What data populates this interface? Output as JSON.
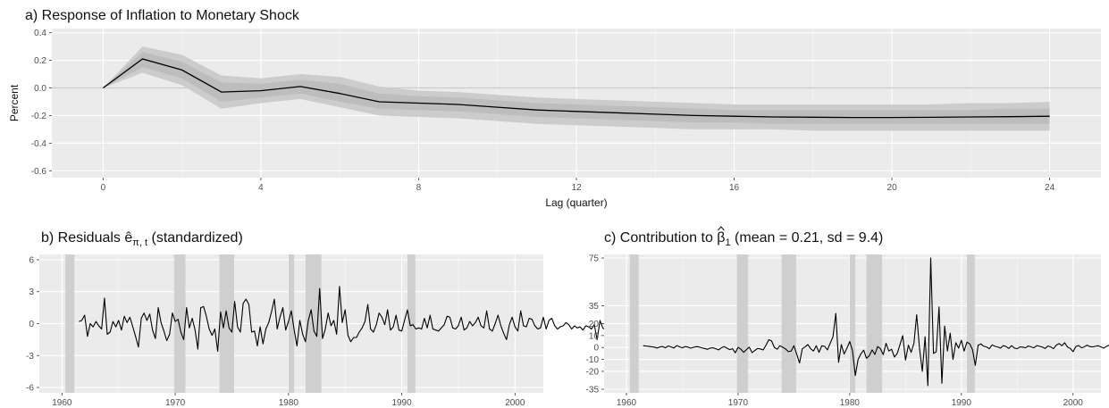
{
  "chart_data": [
    {
      "type": "line",
      "panel": "a",
      "title": "a) Response of Inflation to Monetary Shock",
      "xlabel": "Lag (quarter)",
      "ylabel": "Percent",
      "xlim": [
        -1.3,
        25.3
      ],
      "ylim": [
        -0.65,
        0.43
      ],
      "xticks": [
        0,
        4,
        8,
        12,
        16,
        20,
        24
      ],
      "yticks": [
        0.4,
        0.2,
        0.0,
        -0.2,
        -0.4,
        -0.6
      ],
      "ytick_labels": [
        "0.4",
        "0.2",
        "0.0",
        "-0.2",
        "-0.4",
        "-0.6"
      ],
      "x": [
        0,
        1,
        2,
        3,
        4,
        5,
        6,
        7,
        8,
        9,
        10,
        11,
        12,
        13,
        14,
        15,
        16,
        17,
        18,
        19,
        20,
        21,
        22,
        23,
        24
      ],
      "series": [
        {
          "values": [
            0,
            0.21,
            0.13,
            -0.03,
            -0.02,
            0.01,
            -0.04,
            -0.1,
            -0.11,
            -0.12,
            -0.14,
            -0.16,
            -0.17,
            -0.18,
            -0.19,
            -0.2,
            -0.205,
            -0.21,
            -0.212,
            -0.214,
            -0.214,
            -0.213,
            -0.21,
            -0.208,
            -0.205
          ],
          "band_outer_upper": [
            0,
            0.3,
            0.24,
            0.09,
            0.07,
            0.1,
            0.08,
            0.01,
            -0.02,
            -0.03,
            -0.05,
            -0.07,
            -0.08,
            -0.09,
            -0.1,
            -0.11,
            -0.12,
            -0.12,
            -0.12,
            -0.12,
            -0.12,
            -0.12,
            -0.11,
            -0.11,
            -0.1
          ],
          "band_outer_lower": [
            0,
            0.11,
            0.02,
            -0.15,
            -0.11,
            -0.08,
            -0.14,
            -0.2,
            -0.21,
            -0.22,
            -0.24,
            -0.26,
            -0.27,
            -0.28,
            -0.29,
            -0.3,
            -0.3,
            -0.3,
            -0.31,
            -0.31,
            -0.31,
            -0.31,
            -0.31,
            -0.31,
            -0.31
          ],
          "band_inner_upper": [
            0,
            0.26,
            0.19,
            0.04,
            0.03,
            0.06,
            0.03,
            -0.04,
            -0.06,
            -0.07,
            -0.09,
            -0.11,
            -0.12,
            -0.13,
            -0.14,
            -0.15,
            -0.16,
            -0.16,
            -0.16,
            -0.16,
            -0.16,
            -0.16,
            -0.16,
            -0.15,
            -0.15
          ],
          "band_inner_lower": [
            0,
            0.15,
            0.07,
            -0.1,
            -0.07,
            -0.04,
            -0.1,
            -0.15,
            -0.16,
            -0.17,
            -0.19,
            -0.21,
            -0.22,
            -0.23,
            -0.24,
            -0.25,
            -0.25,
            -0.26,
            -0.26,
            -0.26,
            -0.26,
            -0.26,
            -0.26,
            -0.26,
            -0.26
          ]
        }
      ],
      "hline": 0
    },
    {
      "type": "line",
      "panel": "b",
      "title": "b) Residuals ",
      "title_hat_symbol": "ê",
      "title_subscript": "π, t",
      "title_suffix": " (standardized)",
      "xlim": [
        1958,
        2002.5
      ],
      "ylim": [
        -6.5,
        6.5
      ],
      "xticks": [
        1960,
        1970,
        1980,
        1990,
        2000
      ],
      "yticks": [
        6,
        3,
        0,
        -3,
        -6
      ],
      "recessions": [
        [
          1960.3,
          1961.1
        ],
        [
          1969.9,
          1970.9
        ],
        [
          1973.9,
          1975.2
        ],
        [
          1980.0,
          1980.5
        ],
        [
          1981.5,
          1982.9
        ],
        [
          1990.5,
          1991.2
        ]
      ],
      "x_start": 1961.5,
      "x_step": 0.25,
      "values": [
        0.2,
        0.3,
        0.8,
        -1.2,
        0,
        -0.3,
        0.2,
        -0.2,
        -0.5,
        2.4,
        -1,
        -0.8,
        0.2,
        -0.3,
        0.3,
        -0.6,
        0.7,
        0.1,
        0.6,
        -0.3,
        -1.2,
        -2.2,
        0.5,
        1,
        0.3,
        0.9,
        -0.6,
        -1.4,
        1.5,
        0.1,
        -0.7,
        -1.6,
        -1,
        1,
        0.2,
        0.4,
        -0.8,
        -1.5,
        1.5,
        -0.4,
        0.5,
        -0.6,
        -2.4,
        1.5,
        1.6,
        0.7,
        -0.5,
        -1.1,
        -0.5,
        -2.6,
        1.1,
        -0.4,
        1.2,
        -0.4,
        -0.8,
        2.1,
        -0.3,
        -0.8,
        1.9,
        2.3,
        1.8,
        -0.8,
        -0.7,
        -2.1,
        -0.3,
        -1.9,
        -0.5,
        0.1,
        1.1,
        2.3,
        -0.5,
        0.6,
        1.5,
        -0.6,
        0.2,
        1.2,
        -0.6,
        -2.1,
        0.3,
        -1,
        -1.7,
        0.3,
        1.3,
        -0.7,
        -1.2,
        3.3,
        -1.4,
        -0.5,
        1,
        -0.2,
        0.3,
        -1,
        3.5,
        0.1,
        1.3,
        -1.1,
        -1.7,
        -1.3,
        -1.3,
        -0.8,
        -0.4,
        0.2,
        1.8,
        -0.5,
        -0.8,
        -0.1,
        1,
        0.6,
        -0.1,
        1.3,
        -0.6,
        -0.3,
        0.8,
        -0.6,
        -0.7,
        0.3,
        1.3,
        -0.2,
        -0.1,
        -0.5,
        -0.4,
        -0.5,
        0.5,
        -0.4,
        0.8,
        -0.5,
        -0.6,
        -0.7,
        -0.4,
        -0.1,
        0.7,
        0.6,
        -0.4,
        -0.5,
        -0.2,
        0.6,
        -0.6,
        -0.4,
        0.2,
        -0.2,
        0.1,
        0.6,
        -0.2,
        -0.4,
        1.2,
        -0.5,
        -0.7,
        0,
        0.8,
        -0.2,
        -0.9,
        -1.5,
        -0.1,
        0.6,
        -0.3,
        -0.7,
        1.2,
        -0.2,
        -0.3,
        0.5,
        0.4,
        -0.2,
        -0.5,
        -0.4,
        0.6,
        -0.5,
        0.3,
        0.5,
        -0.2,
        -0.5,
        -0.3,
        -0.2,
        0.1,
        -0.1,
        -0.5,
        -0.2,
        -0.4,
        -0.3,
        -0.6,
        -0.2,
        -0.3,
        -0.5,
        -0.1,
        -1.5,
        0.3,
        -0.4,
        -0.6,
        -0.1,
        -1.2,
        -0.6,
        -0.1,
        -0.4,
        0.1,
        -0.5,
        -0.2,
        -0.6,
        0.4,
        0.5,
        -0.3,
        0.6,
        0.6,
        0.1,
        -0.2,
        -0.4,
        -0.5
      ]
    },
    {
      "type": "line",
      "panel": "c",
      "title": "c) Contribution to ",
      "title_hat_symbol": "β",
      "title_subscript": "1",
      "title_suffix": " (mean = 0.21, sd = 9.4)",
      "xlim": [
        1958,
        2002.5
      ],
      "ylim": [
        -38,
        78
      ],
      "xticks": [
        1960,
        1970,
        1980,
        1990,
        2000
      ],
      "yticks": [
        75,
        35,
        20,
        10,
        0,
        -10,
        -20,
        -35
      ],
      "recessions": [
        [
          1960.3,
          1961.1
        ],
        [
          1969.9,
          1970.9
        ],
        [
          1973.9,
          1975.2
        ],
        [
          1980.0,
          1980.5
        ],
        [
          1981.5,
          1982.9
        ],
        [
          1990.5,
          1991.2
        ]
      ],
      "x_start": 1961.5,
      "x_step": 0.25,
      "values": [
        1.5,
        1.2,
        1,
        0.6,
        0.3,
        -0.5,
        0.5,
        0.8,
        -0.3,
        1.3,
        0.5,
        -0.4,
        1.5,
        0.6,
        -0.3,
        0.8,
        0.4,
        -0.6,
        0.2,
        0.7,
        0.5,
        -0.3,
        -0.8,
        -1.5,
        -0.5,
        -0.2,
        -1,
        -2,
        -0.3,
        0.8,
        -0.5,
        -1.8,
        -1,
        -4.5,
        0.1,
        -1.5,
        -4,
        -1.8,
        0.3,
        -4.3,
        -2.5,
        -0.8,
        -1.2,
        -2.1,
        2,
        6.5,
        5.5,
        0.2,
        -1.5,
        1.5,
        0.2,
        -1.2,
        -3.5,
        -3,
        1.5,
        -5.5,
        -13,
        -1,
        0.5,
        2.5,
        -1,
        -3,
        1.5,
        -4,
        1.4,
        1,
        -2,
        3.5,
        9,
        28.5,
        -12.5,
        2.5,
        -5.5,
        -0.5,
        5,
        -3,
        -23.5,
        -10,
        -5.3,
        -2.2,
        -9,
        -7,
        -2,
        -5.8,
        0.8,
        -1,
        -6,
        3.5,
        -3,
        -1.5,
        -8,
        -5,
        2.5,
        10,
        -10.5,
        2,
        -4,
        3.5,
        27.5,
        -1,
        -20,
        9,
        -32,
        75,
        -5,
        -3.5,
        34,
        -30,
        18,
        -3,
        12,
        -10,
        4,
        -0.5,
        6,
        -3,
        4.5,
        3,
        -2,
        -15,
        2,
        3,
        1,
        0.5,
        -1,
        2.2,
        1,
        0.5,
        -0.5,
        1.5,
        0.8,
        -0.8,
        1.5,
        -0.4,
        -1,
        0.5,
        0.3,
        -0.3,
        1.3,
        0.5,
        -0.3,
        1.5,
        1,
        0.3,
        -0.8,
        1.2,
        0.5,
        -1,
        2,
        3.3,
        1.5,
        4,
        0.5,
        -0.8,
        -3.5,
        0.8,
        1.7,
        -0.3,
        0.5,
        2,
        0.8,
        0.5,
        1,
        1.5,
        0.5,
        -0.5,
        1,
        2,
        0.3,
        0.5,
        1.5,
        1.8,
        1.5,
        0.8,
        1.2,
        2.3,
        1.5,
        0.3,
        1,
        2,
        0.5,
        0.5,
        -0.5,
        1,
        2,
        0.5,
        0.5,
        -0.6,
        0.8,
        0.2,
        0.5,
        1.2,
        -0.3,
        0.8,
        0.5,
        0.4,
        0.6,
        0.6,
        0,
        0.5,
        0.8,
        -0.8,
        -0.5,
        0.3,
        0.5,
        0.2,
        0.3,
        0.5,
        1.5,
        0.8,
        1,
        0.3,
        1
      ]
    }
  ],
  "colors": {
    "panel_bg": "#ebebeb",
    "grid_major": "#ffffff",
    "band_outer": "#cccccc",
    "band_inner": "#bdbdbd",
    "recession": "#cfcfcf",
    "line": "#000000",
    "zero_line": "#cbcbcb"
  }
}
